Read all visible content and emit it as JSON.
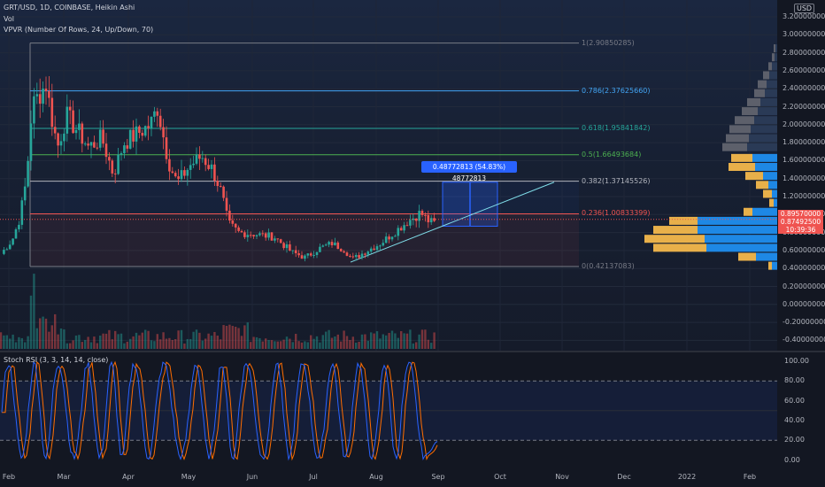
{
  "legend": {
    "symbol_line": "GRT/USD, 1D, COINBASE, Heikin Ashi",
    "vol": "Vol",
    "vpvr": "VPVR (Number Of Rows, 24, Up/Down, 70)",
    "stoch": "Stoch RSI (3, 3, 14, 14, close)"
  },
  "currency_badge": "USD",
  "price_axis": [
    "3.20000000",
    "3.00000000",
    "2.80000000",
    "2.60000000",
    "2.40000000",
    "2.20000000",
    "2.00000000",
    "1.80000000",
    "1.60000000",
    "1.40000000",
    "1.20000000",
    "1.00000000",
    "0.80000000",
    "0.60000000",
    "0.40000000",
    "0.20000000",
    "0.00000000",
    "-0.20000000",
    "-0.40000000"
  ],
  "price_tags": {
    "current_price": "0.89570000",
    "prev_close": "0.87492500",
    "countdown": "10:39:36"
  },
  "fib_levels": [
    {
      "label": "1(2.90850285)",
      "price": 2.90850285,
      "color": "#787b86"
    },
    {
      "label": "0.786(2.37625660)",
      "price": 2.3762566,
      "color": "#42a5f5"
    },
    {
      "label": "0.618(1.95841842)",
      "price": 1.95841842,
      "color": "#26a69a"
    },
    {
      "label": "0.5(1.66493684)",
      "price": 1.66493684,
      "color": "#4caf50"
    },
    {
      "label": "0.382(1.37145526)",
      "price": 1.37145526,
      "color": "#b2b5be"
    },
    {
      "label": "0.236(1.00833399)",
      "price": 1.00833399,
      "color": "#ef5350"
    },
    {
      "label": "0(0.42137083)",
      "price": 0.42137083,
      "color": "#787b86"
    }
  ],
  "measure_label": "0.48772813 (54.83%) 48772813",
  "rsi_axis": [
    "100.00",
    "80.00",
    "60.00",
    "40.00",
    "20.00",
    "0.00"
  ],
  "time_axis": [
    "Feb",
    "Mar",
    "Apr",
    "May",
    "Jun",
    "Jul",
    "Aug",
    "Sep",
    "Oct",
    "Nov",
    "Dec",
    "2022",
    "Feb"
  ],
  "colors": {
    "up": "#26a69a",
    "down": "#ef5350",
    "background": "#131722",
    "vpvr_up": "#1e88e5",
    "vpvr_down": "#e8b04a",
    "vpvr_gray": "#5d606b",
    "stoch_k": "#2962ff",
    "stoch_d": "#ff6d00",
    "trendline": "#80deea"
  },
  "icons": {}
}
